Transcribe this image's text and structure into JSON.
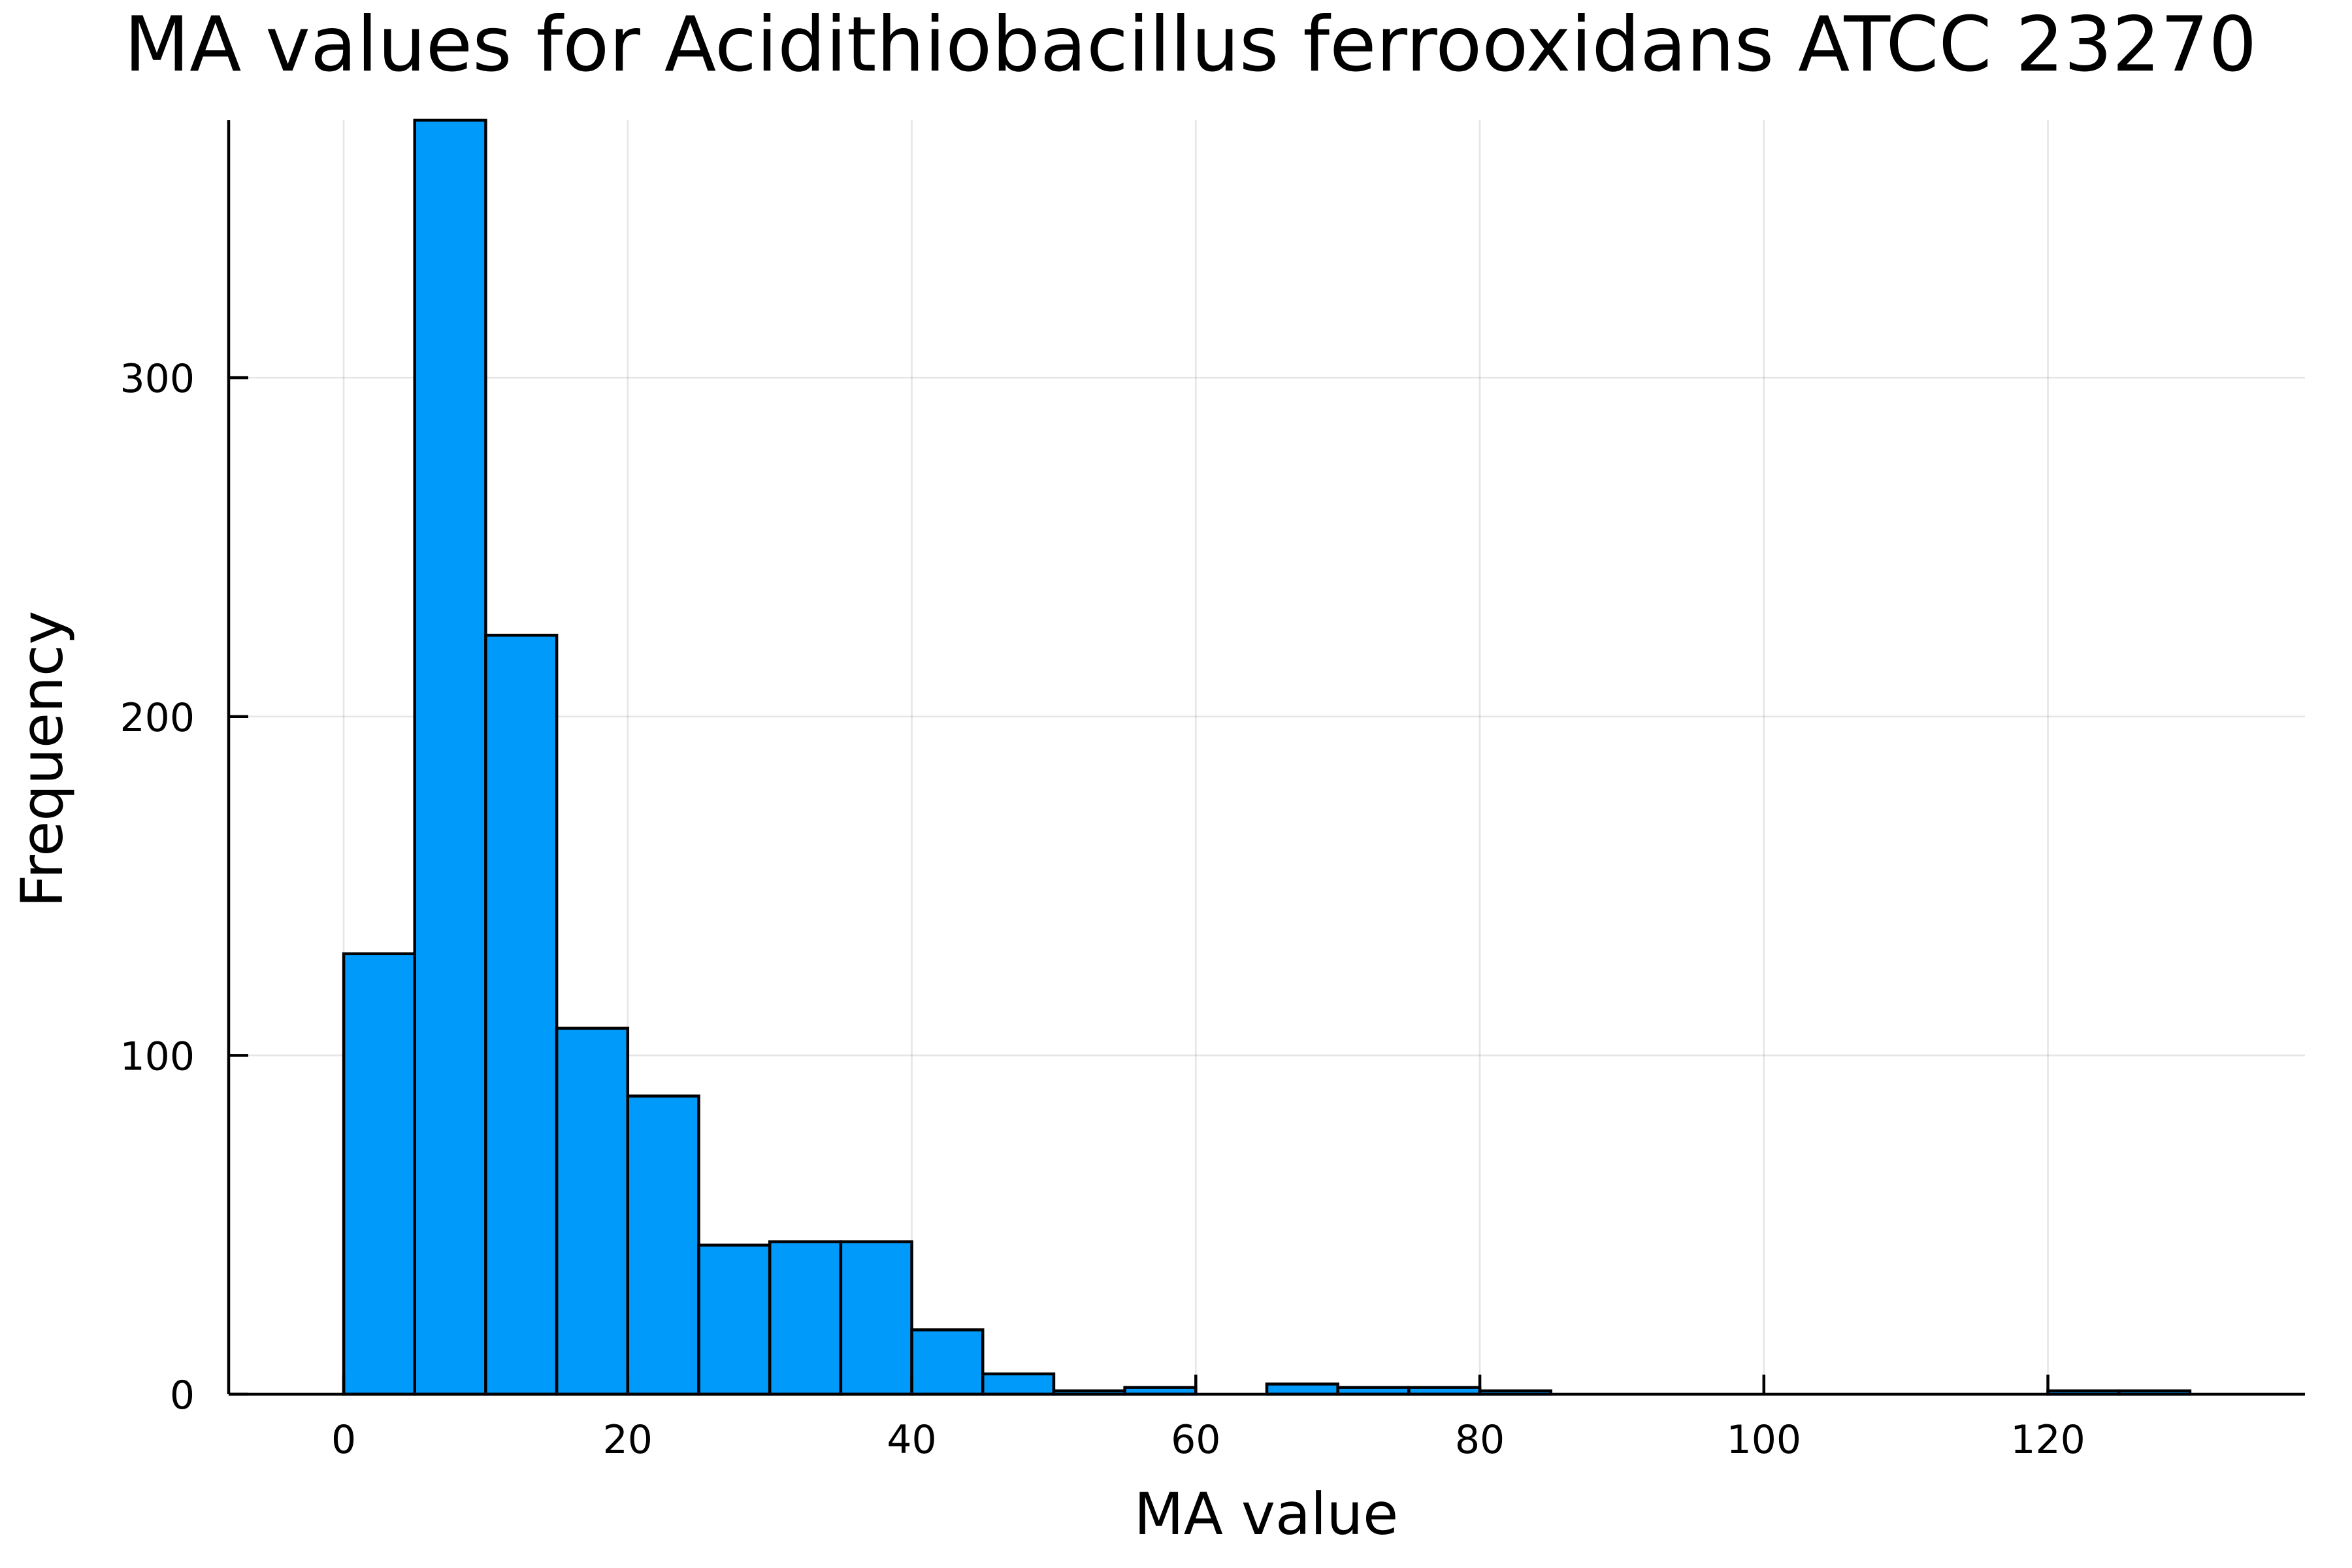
{
  "chart_data": {
    "type": "bar",
    "subtype": "histogram",
    "title": "MA values for Acidithiobacillus ferrooxidans ATCC 23270",
    "xlabel": "MA value",
    "ylabel": "Frequency",
    "bin_width": 5,
    "bins": [
      {
        "start": 0,
        "end": 5,
        "count": 130
      },
      {
        "start": 5,
        "end": 10,
        "count": 376
      },
      {
        "start": 10,
        "end": 15,
        "count": 224
      },
      {
        "start": 15,
        "end": 20,
        "count": 108
      },
      {
        "start": 20,
        "end": 25,
        "count": 88
      },
      {
        "start": 25,
        "end": 30,
        "count": 44
      },
      {
        "start": 30,
        "end": 35,
        "count": 45
      },
      {
        "start": 35,
        "end": 40,
        "count": 45
      },
      {
        "start": 40,
        "end": 45,
        "count": 19
      },
      {
        "start": 45,
        "end": 50,
        "count": 6
      },
      {
        "start": 50,
        "end": 55,
        "count": 1
      },
      {
        "start": 55,
        "end": 60,
        "count": 2
      },
      {
        "start": 60,
        "end": 65,
        "count": 0
      },
      {
        "start": 65,
        "end": 70,
        "count": 3
      },
      {
        "start": 70,
        "end": 75,
        "count": 2
      },
      {
        "start": 75,
        "end": 80,
        "count": 2
      },
      {
        "start": 80,
        "end": 85,
        "count": 1
      },
      {
        "start": 85,
        "end": 90,
        "count": 0
      },
      {
        "start": 90,
        "end": 95,
        "count": 0
      },
      {
        "start": 95,
        "end": 100,
        "count": 0
      },
      {
        "start": 100,
        "end": 105,
        "count": 0
      },
      {
        "start": 105,
        "end": 110,
        "count": 0
      },
      {
        "start": 110,
        "end": 115,
        "count": 0
      },
      {
        "start": 115,
        "end": 120,
        "count": 0
      },
      {
        "start": 120,
        "end": 125,
        "count": 1
      },
      {
        "start": 125,
        "end": 130,
        "count": 1
      }
    ],
    "xlim": [
      -8.1,
      138.1
    ],
    "ylim": [
      0,
      376
    ],
    "x_ticks": [
      0,
      20,
      40,
      60,
      80,
      100,
      120
    ],
    "y_ticks": [
      0,
      100,
      200,
      300
    ],
    "grid": true,
    "legend": "none",
    "colors": {
      "bar_fill": "#009AFA",
      "bar_stroke": "#000000",
      "background": "#ffffff"
    }
  }
}
